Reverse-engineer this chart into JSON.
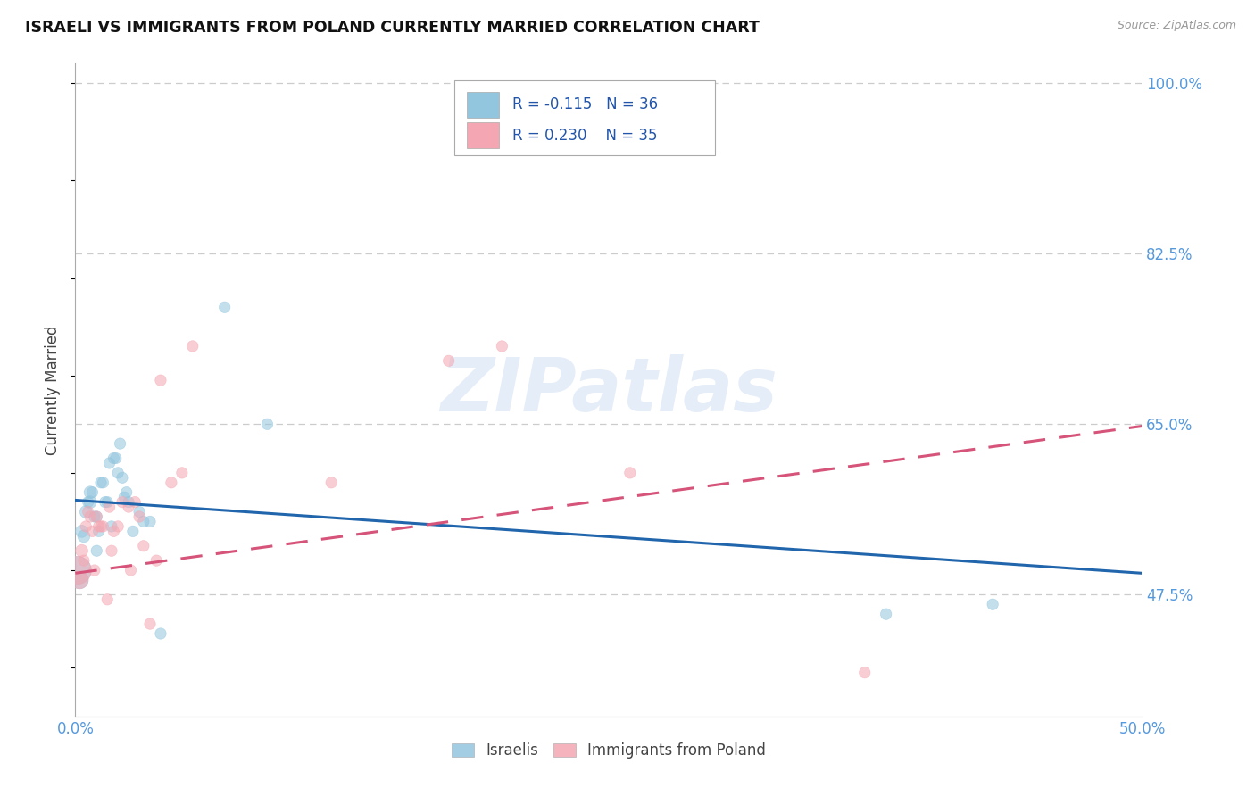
{
  "title": "ISRAELI VS IMMIGRANTS FROM POLAND CURRENTLY MARRIED CORRELATION CHART",
  "source": "Source: ZipAtlas.com",
  "ylabel": "Currently Married",
  "x_min": 0.0,
  "x_max": 0.5,
  "y_min": 0.35,
  "y_max": 1.02,
  "background_color": "#ffffff",
  "watermark": "ZIPatlas",
  "legend_r1": "R = -0.115",
  "legend_n1": "N = 36",
  "legend_r2": "R = 0.230",
  "legend_n2": "N = 35",
  "legend_label1": "Israelis",
  "legend_label2": "Immigrants from Poland",
  "blue_color": "#92c5de",
  "pink_color": "#f4a7b2",
  "line_blue": "#2166ac",
  "line_pink": "#d6547a",
  "grid_color": "#cccccc",
  "right_tick_color": "#5599dd",
  "israelis_x": [
    0.001,
    0.002,
    0.003,
    0.004,
    0.005,
    0.006,
    0.007,
    0.007,
    0.008,
    0.009,
    0.01,
    0.01,
    0.011,
    0.012,
    0.013,
    0.014,
    0.015,
    0.016,
    0.017,
    0.018,
    0.019,
    0.02,
    0.021,
    0.022,
    0.023,
    0.024,
    0.025,
    0.027,
    0.03,
    0.032,
    0.035,
    0.04,
    0.07,
    0.09,
    0.38,
    0.43
  ],
  "israelis_y": [
    0.5,
    0.49,
    0.54,
    0.535,
    0.56,
    0.57,
    0.58,
    0.57,
    0.58,
    0.555,
    0.52,
    0.555,
    0.54,
    0.59,
    0.59,
    0.57,
    0.57,
    0.61,
    0.545,
    0.615,
    0.615,
    0.6,
    0.63,
    0.595,
    0.575,
    0.58,
    0.57,
    0.54,
    0.56,
    0.55,
    0.55,
    0.435,
    0.77,
    0.65,
    0.455,
    0.465
  ],
  "israelis_size": [
    500,
    200,
    100,
    100,
    100,
    80,
    100,
    100,
    80,
    80,
    80,
    80,
    80,
    80,
    80,
    80,
    80,
    80,
    80,
    80,
    80,
    80,
    80,
    80,
    80,
    80,
    80,
    80,
    80,
    80,
    80,
    80,
    80,
    80,
    80,
    80
  ],
  "poland_x": [
    0.001,
    0.002,
    0.003,
    0.004,
    0.005,
    0.006,
    0.007,
    0.008,
    0.009,
    0.01,
    0.011,
    0.012,
    0.013,
    0.015,
    0.016,
    0.017,
    0.018,
    0.02,
    0.022,
    0.025,
    0.026,
    0.028,
    0.03,
    0.032,
    0.035,
    0.038,
    0.04,
    0.045,
    0.05,
    0.055,
    0.12,
    0.175,
    0.2,
    0.26,
    0.37
  ],
  "poland_y": [
    0.5,
    0.49,
    0.52,
    0.51,
    0.545,
    0.56,
    0.555,
    0.54,
    0.5,
    0.555,
    0.545,
    0.545,
    0.545,
    0.47,
    0.565,
    0.52,
    0.54,
    0.545,
    0.57,
    0.565,
    0.5,
    0.57,
    0.555,
    0.525,
    0.445,
    0.51,
    0.695,
    0.59,
    0.6,
    0.73,
    0.59,
    0.715,
    0.73,
    0.6,
    0.395
  ],
  "poland_size": [
    500,
    200,
    100,
    80,
    80,
    80,
    80,
    80,
    80,
    80,
    80,
    80,
    80,
    80,
    80,
    80,
    80,
    80,
    80,
    80,
    80,
    80,
    80,
    80,
    80,
    80,
    80,
    80,
    80,
    80,
    80,
    80,
    80,
    80,
    80
  ]
}
